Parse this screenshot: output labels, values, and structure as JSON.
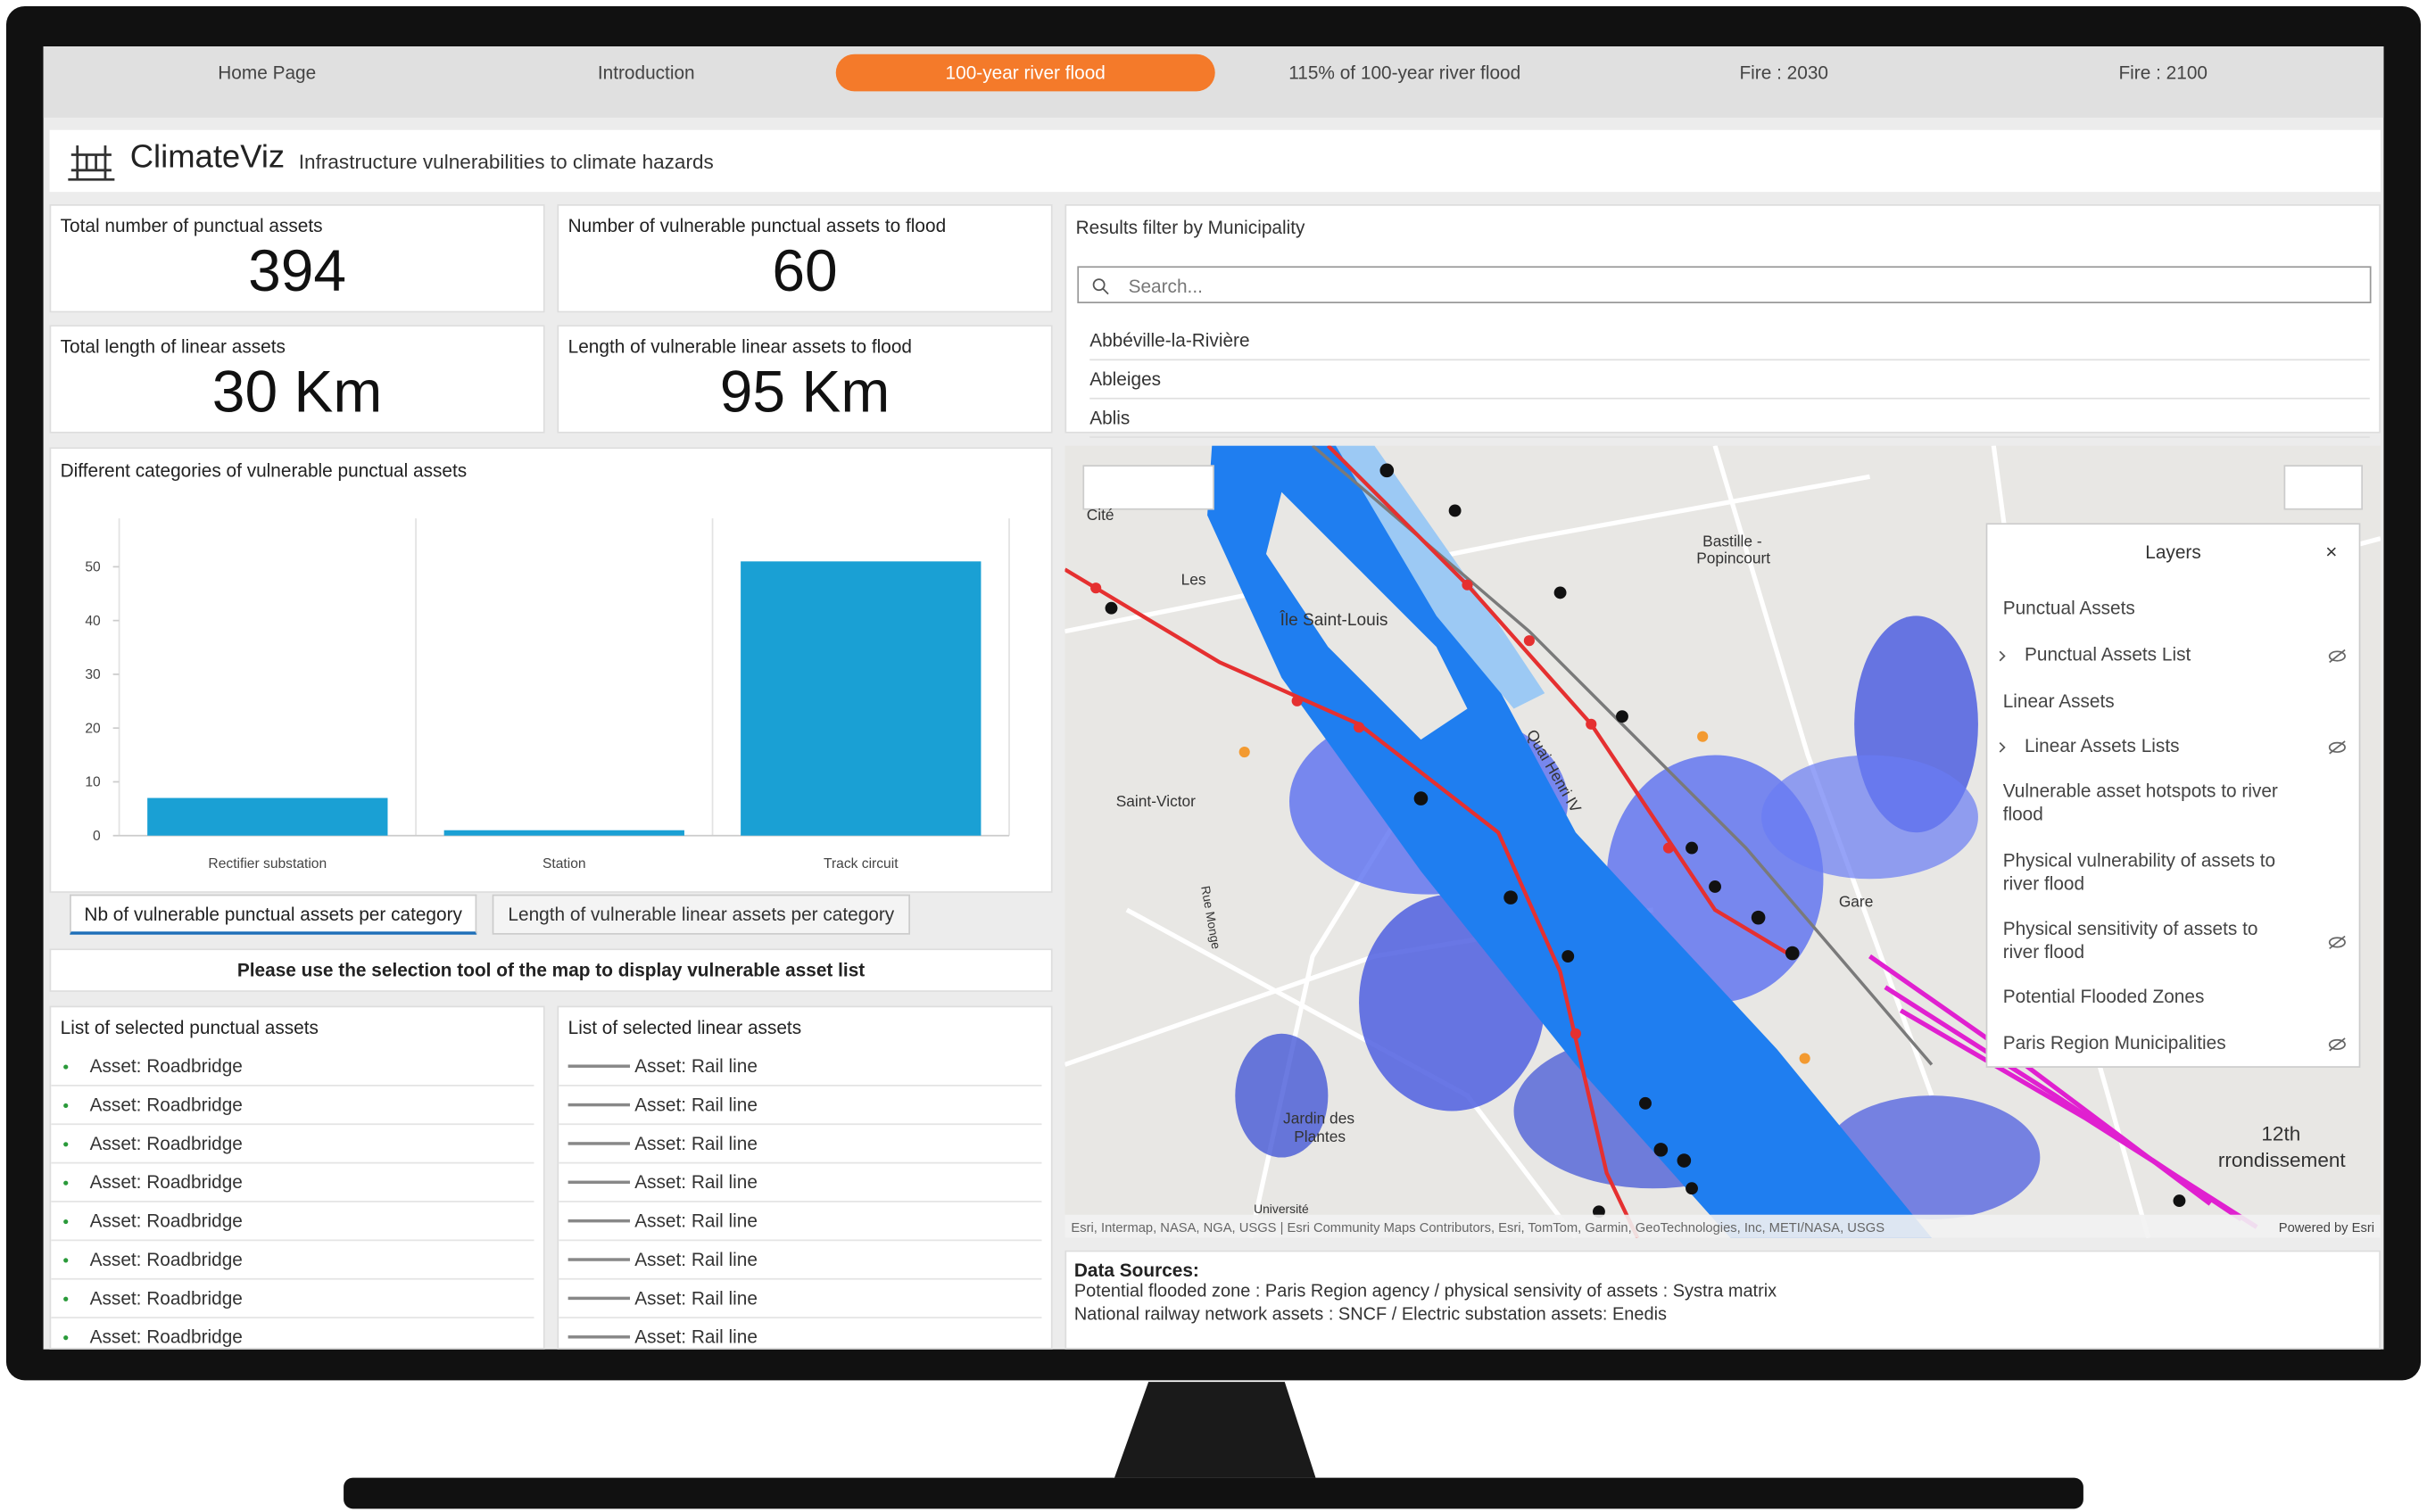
{
  "nav": {
    "tabs": [
      "Home Page",
      "Introduction",
      "100-year river flood",
      "115% of 100-year river flood",
      "Fire : 2030",
      "Fire : 2100"
    ]
  },
  "header": {
    "title": "ClimateViz",
    "subtitle": "Infrastructure vulnerabilities to climate hazards"
  },
  "kpis": [
    {
      "label": "Total number of punctual assets",
      "value": "394"
    },
    {
      "label": "Number of vulnerable punctual assets to flood",
      "value": "60"
    },
    {
      "label": "Total length of linear assets",
      "value": "30 Km"
    },
    {
      "label": "Length of vulnerable linear assets to flood",
      "value": "95 Km"
    }
  ],
  "municipality_filter": {
    "title": "Results filter by Municipality",
    "search_placeholder": "Search...",
    "items": [
      "Abbéville-la-Rivière",
      "Ableiges",
      "Ablis"
    ]
  },
  "chart_data": {
    "type": "bar",
    "title": "Different categories of vulnerable punctual assets",
    "categories": [
      "Rectifier substation",
      "Station",
      "Track circuit"
    ],
    "values": [
      7,
      1,
      51
    ],
    "color": "#1aa0d4",
    "ylim": [
      0,
      59
    ],
    "yticks": [
      0,
      10,
      20,
      30,
      40,
      50
    ]
  },
  "chart_tabs": [
    "Nb of vulnerable punctual assets per category",
    "Length of vulnerable linear assets per category"
  ],
  "notice": "Please use the selection tool of the map to display vulnerable asset list",
  "punctual_list": {
    "title": "List of selected punctual assets",
    "items": [
      "Asset: Roadbridge",
      "Asset: Roadbridge",
      "Asset: Roadbridge",
      "Asset: Roadbridge",
      "Asset: Roadbridge",
      "Asset: Roadbridge",
      "Asset: Roadbridge",
      "Asset: Roadbridge"
    ]
  },
  "linear_list": {
    "title": "List of selected linear assets",
    "items": [
      "Asset: Rail line",
      "Asset: Rail line",
      "Asset: Rail line",
      "Asset: Rail line",
      "Asset: Rail line",
      "Asset: Rail line",
      "Asset: Rail line",
      "Asset: Rail line"
    ]
  },
  "map": {
    "labels": [
      "Cité",
      "Les",
      "Île Saint-Louis",
      "Bastille -",
      "Popincourt",
      "Saint-Victor",
      "Jardin des",
      "Plantes",
      "Quai Henri IV",
      "Rue Monge",
      "12th",
      "rrondissement",
      "Gare",
      "Université"
    ],
    "attribution": "Esri, Intermap, NASA, NGA, USGS | Esri Community Maps Contributors, Esri, TomTom, Garmin, GeoTechnologies, Inc, METI/NASA, USGS",
    "powered_by": "Powered by Esri"
  },
  "layers": {
    "title": "Layers",
    "items": [
      "Punctual Assets",
      "Punctual Assets List",
      "Linear Assets",
      "Linear Assets Lists",
      "Vulnerable asset hotspots to river flood",
      "Physical vulnerability of assets to river flood",
      "Physical sensitivity of assets to river flood",
      "Potential Flooded Zones",
      "Paris Region Municipalities"
    ]
  },
  "data_sources": {
    "title": "Data Sources:",
    "lines": [
      "Potential flooded zone : Paris Region agency / physical sensivity of assets : Systra matrix",
      "National railway network assets : SNCF / Electric substation assets: Enedis"
    ]
  }
}
